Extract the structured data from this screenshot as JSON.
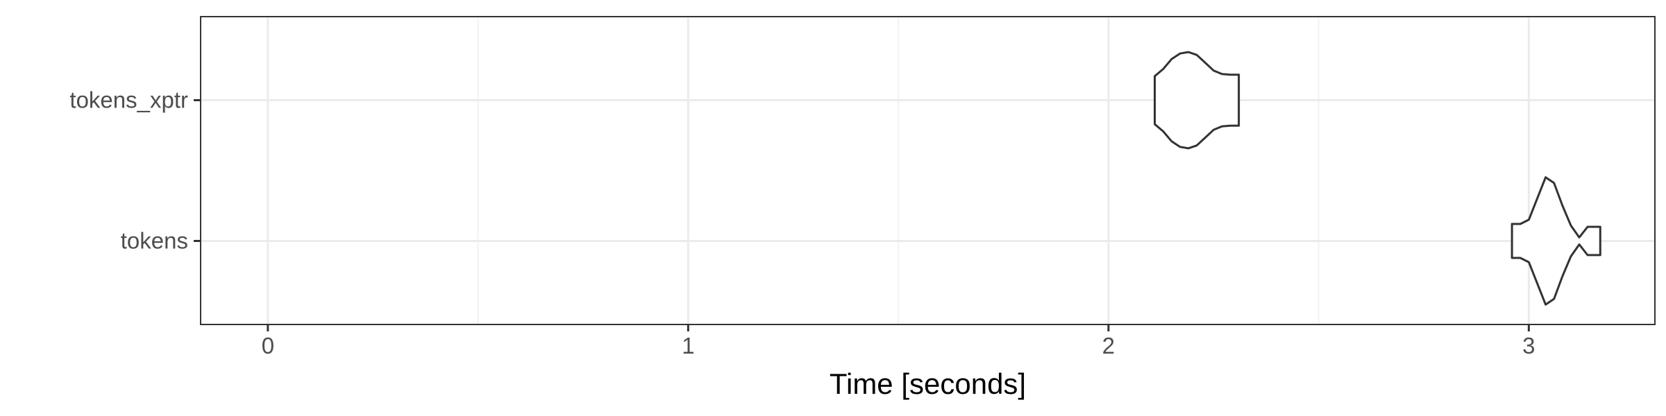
{
  "chart_data": {
    "type": "violin",
    "title": "",
    "xlabel": "Time [seconds]",
    "ylabel": "",
    "xlim": [
      -0.16,
      3.3
    ],
    "x_ticks": [
      0,
      1,
      2,
      3
    ],
    "x_tick_labels": [
      "0",
      "1",
      "2",
      "3"
    ],
    "x_minor_gridlines": [
      0.5,
      1.5,
      2.5
    ],
    "categories": [
      "tokens",
      "tokens_xptr"
    ],
    "grid": true,
    "legend": "none",
    "series": [
      {
        "category": "tokens_xptr",
        "min": 2.11,
        "max": 2.31,
        "profile": [
          [
            2.11,
            0.34
          ],
          [
            2.13,
            0.44
          ],
          [
            2.15,
            0.58
          ],
          [
            2.17,
            0.66
          ],
          [
            2.19,
            0.68
          ],
          [
            2.21,
            0.64
          ],
          [
            2.23,
            0.53
          ],
          [
            2.25,
            0.42
          ],
          [
            2.27,
            0.37
          ],
          [
            2.29,
            0.36
          ],
          [
            2.31,
            0.36
          ]
        ]
      },
      {
        "category": "tokens",
        "min": 2.96,
        "max": 3.17,
        "profile": [
          [
            2.96,
            0.24
          ],
          [
            2.98,
            0.24
          ],
          [
            3.0,
            0.3
          ],
          [
            3.02,
            0.6
          ],
          [
            3.04,
            0.9
          ],
          [
            3.06,
            0.82
          ],
          [
            3.08,
            0.5
          ],
          [
            3.1,
            0.22
          ],
          [
            3.12,
            0.05
          ],
          [
            3.14,
            0.2
          ],
          [
            3.16,
            0.2
          ],
          [
            3.17,
            0.2
          ]
        ]
      }
    ],
    "colors": {
      "outline": "#333333",
      "panel_border": "#333333",
      "major_grid": "#ebebeb",
      "minor_grid": "#f2f2f2",
      "tick_text": "#4d4d4d",
      "axis_title": "#000000"
    }
  }
}
